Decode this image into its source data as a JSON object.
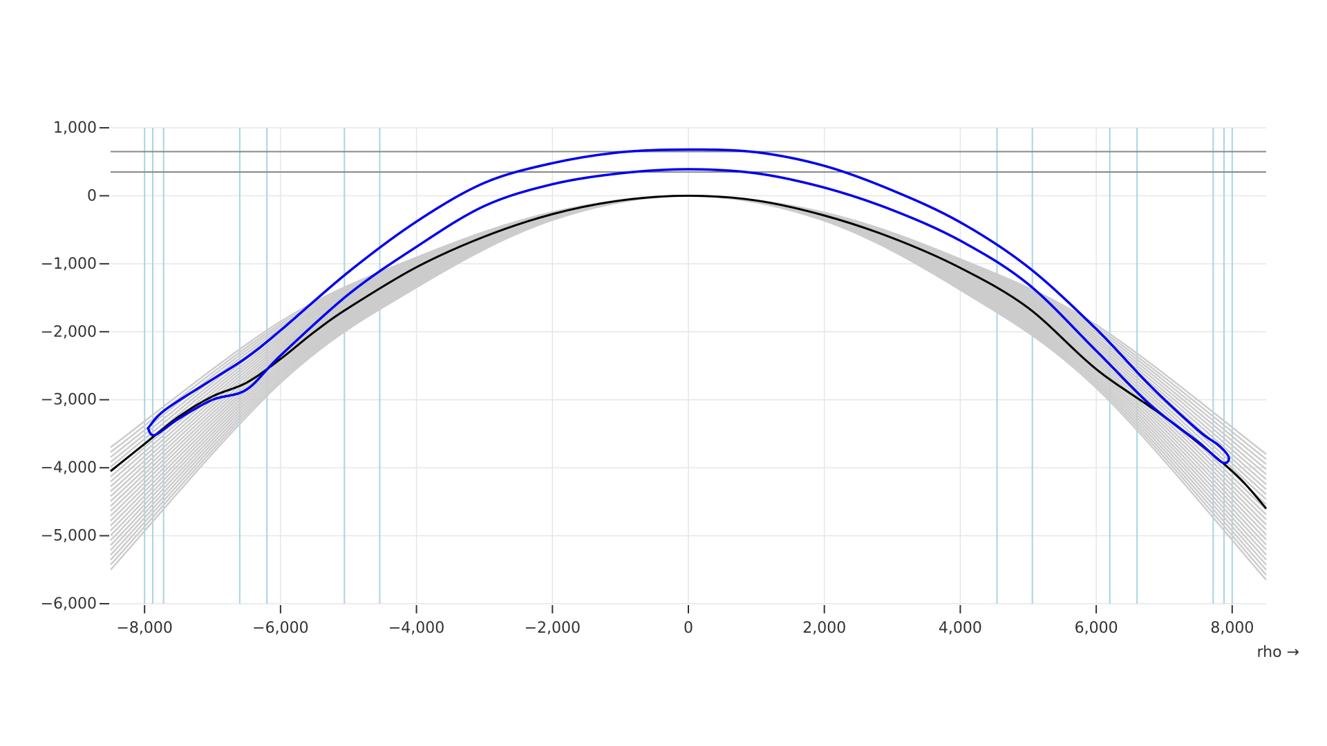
{
  "chart_data": {
    "type": "line",
    "title": "",
    "xlabel": "rho →",
    "ylabel": "",
    "xlim": [
      -8500,
      8500
    ],
    "ylim": [
      -6000,
      1000
    ],
    "grid": true,
    "x_ticks": [
      -8000,
      -6000,
      -4000,
      -2000,
      0,
      2000,
      4000,
      6000,
      8000
    ],
    "x_tick_labels": [
      "−8,000",
      "−6,000",
      "−4,000",
      "−2,000",
      "0",
      "2,000",
      "4,000",
      "6,000",
      "8,000"
    ],
    "y_ticks": [
      1000,
      0,
      -1000,
      -2000,
      -3000,
      -4000,
      -5000,
      -6000
    ],
    "y_tick_labels": [
      "1,000",
      "0",
      "−1,000",
      "−2,000",
      "−3,000",
      "−4,000",
      "−5,000",
      "−6,000"
    ],
    "horizontal_reference_lines": [
      650,
      350
    ],
    "vertical_reference_lines": [
      -8000,
      -7880,
      -7720,
      -6600,
      -6200,
      -5060,
      -4540,
      4540,
      5060,
      6200,
      6600,
      7720,
      7880,
      8000
    ],
    "background_curves": {
      "count": 26,
      "x": [
        -8500,
        -6000,
        -4000,
        -2000,
        0,
        2000,
        4000,
        6000,
        8500
      ],
      "left_end_range": [
        -3700,
        -5500
      ],
      "right_end_range": [
        -3800,
        -5650
      ]
    },
    "main_curve": {
      "x": [
        -8500,
        -8000,
        -7500,
        -7000,
        -6500,
        -6000,
        -5500,
        -5000,
        -4000,
        -3000,
        -2000,
        -1000,
        0,
        1000,
        2000,
        3000,
        4000,
        5000,
        6000,
        7000,
        8000,
        8500
      ],
      "y": [
        -4050,
        -3650,
        -3250,
        -2950,
        -2750,
        -2400,
        -2000,
        -1650,
        -1050,
        -600,
        -270,
        -70,
        0,
        -70,
        -290,
        -620,
        -1060,
        -1650,
        -2550,
        -3250,
        -4050,
        -4600
      ]
    },
    "contour": {
      "outer_top": {
        "x": [
          -7950,
          -7700,
          -7000,
          -6500,
          -6000,
          -5000,
          -4000,
          -3000,
          -2000,
          -1000,
          0,
          1000,
          2000,
          3000,
          4000,
          5000,
          6000,
          6800,
          7500,
          7800,
          7950
        ],
        "y": [
          -3420,
          -3150,
          -2700,
          -2380,
          -1980,
          -1120,
          -380,
          190,
          480,
          640,
          680,
          640,
          440,
          80,
          -390,
          -1050,
          -1960,
          -2800,
          -3450,
          -3670,
          -3850
        ]
      },
      "inner_top": {
        "x": [
          -7850,
          -7500,
          -7000,
          -6500,
          -6000,
          -5000,
          -4000,
          -3000,
          -2000,
          -1000,
          0,
          1000,
          2000,
          3000,
          4000,
          5000,
          6000,
          6800,
          7500,
          7850
        ],
        "y": [
          -3520,
          -3280,
          -3000,
          -2850,
          -2350,
          -1450,
          -750,
          -150,
          170,
          330,
          390,
          330,
          120,
          -210,
          -660,
          -1300,
          -2280,
          -3080,
          -3620,
          -3920
        ]
      }
    },
    "colors": {
      "background_curves": "#cccccc",
      "main_curve": "#000000",
      "contour": "#0000ee",
      "reference_lines": "#888888",
      "vertical_lines": "#a8d4e6",
      "grid": "#e6e6e6",
      "axis_text": "#333333"
    }
  }
}
